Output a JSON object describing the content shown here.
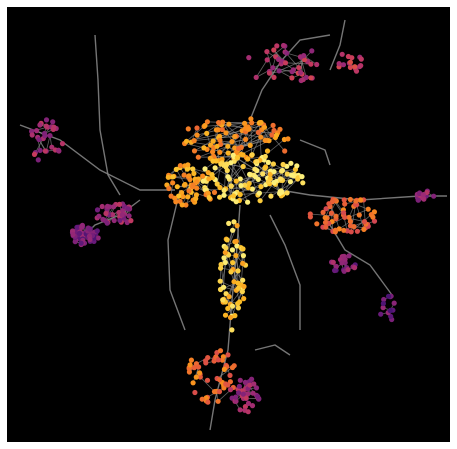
{
  "figure": {
    "kind": "street-network-centrality-map",
    "background_color": "#000000",
    "frame_color": "#ffffff",
    "edge_color": "#8a8a8a",
    "colormap": "inferno",
    "colormap_stops": [
      "#3b0f70",
      "#6a1b7a",
      "#9c2a75",
      "#c83b5c",
      "#e85d37",
      "#f98c1d",
      "#fbbd24",
      "#fcef7a"
    ]
  },
  "clusters": [
    {
      "id": "core-north",
      "value": 0.72
    },
    {
      "id": "core-center",
      "value": 0.95
    },
    {
      "id": "core-west",
      "value": 0.78
    },
    {
      "id": "corridor-south",
      "value": 0.88
    },
    {
      "id": "south-town",
      "value": 0.62
    },
    {
      "id": "southeast-suburb",
      "value": 0.3
    },
    {
      "id": "east-belt",
      "value": 0.58
    },
    {
      "id": "east-far",
      "value": 0.25
    },
    {
      "id": "north-east",
      "value": 0.35
    },
    {
      "id": "north-far",
      "value": 0.4
    },
    {
      "id": "west-suburb-a",
      "value": 0.18
    },
    {
      "id": "west-suburb-b",
      "value": 0.28
    },
    {
      "id": "north-west",
      "value": 0.3
    },
    {
      "id": "east-south",
      "value": 0.22
    },
    {
      "id": "bottom-right",
      "value": 0.15
    }
  ]
}
